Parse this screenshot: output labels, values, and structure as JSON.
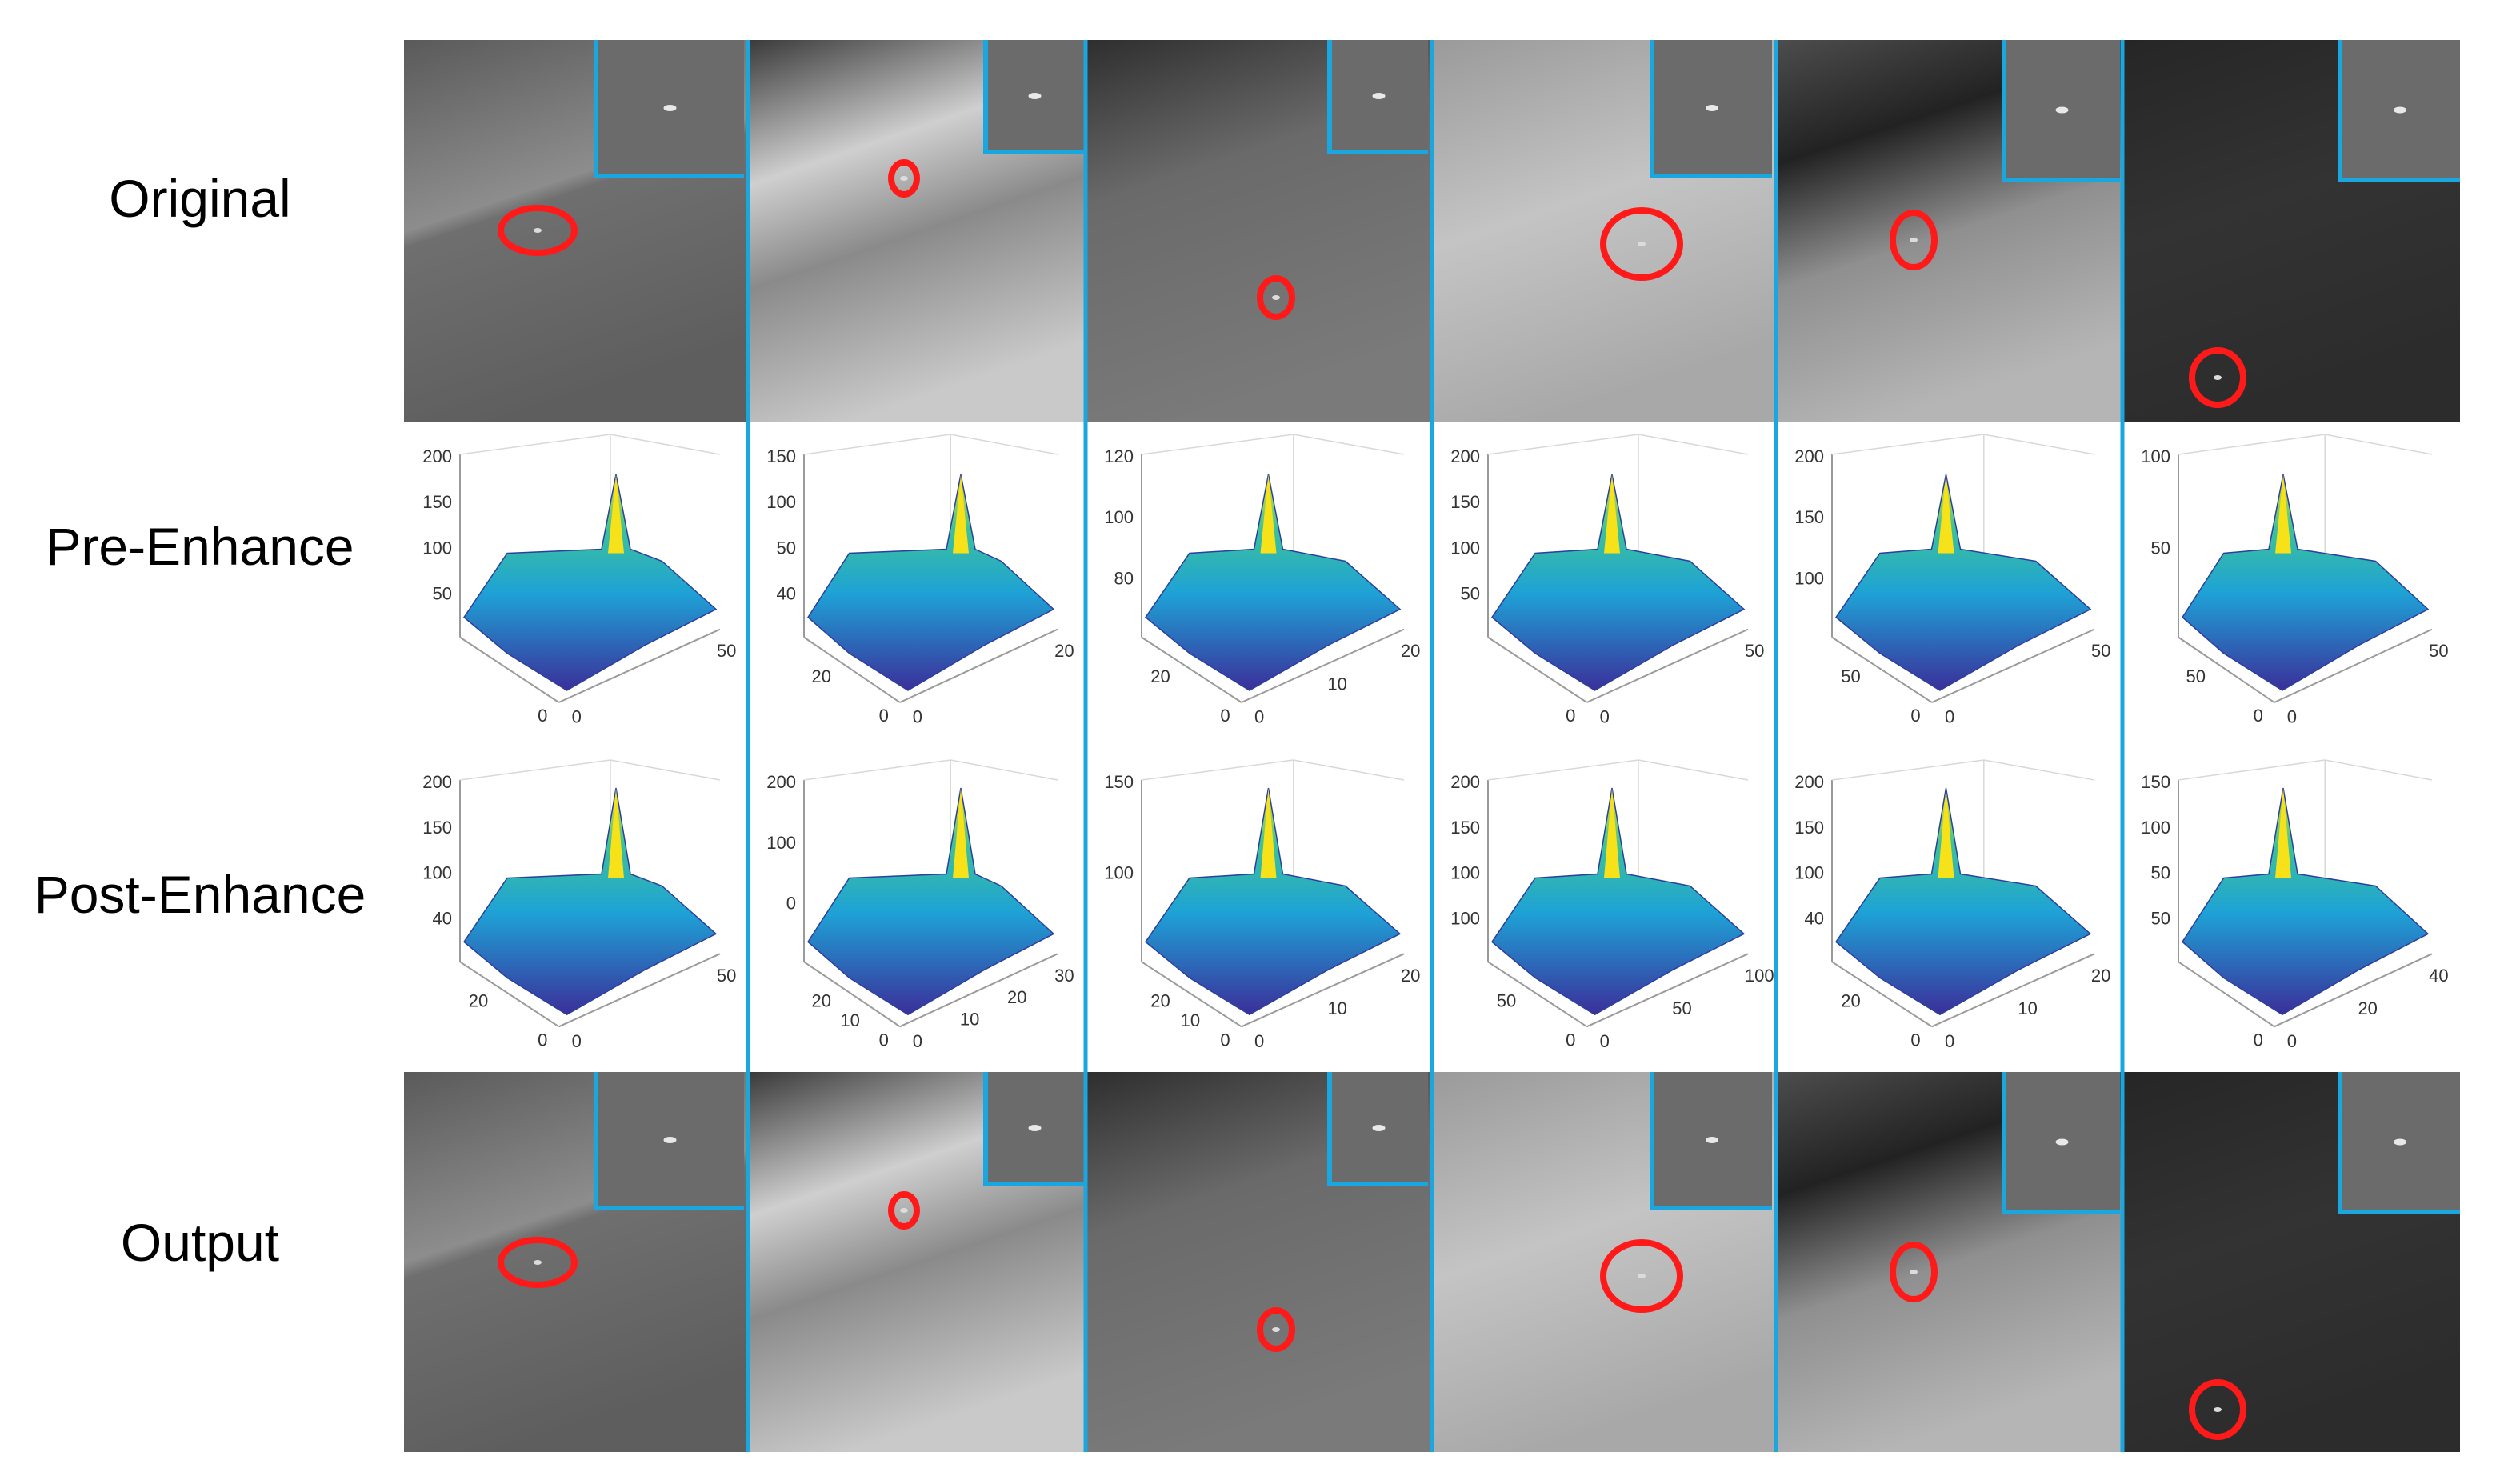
{
  "figure": {
    "row_labels": [
      "Original",
      "Pre-Enhance",
      "Post-Enhance",
      "Output"
    ],
    "colors": {
      "separator": "#1aa7e0",
      "inset_border": "#1aa7e0",
      "target_marker": "#ff1a1a",
      "surface_low": "#3b2f9a",
      "surface_mid": "#1ea2d6",
      "surface_high": "#f7e21a"
    },
    "columns": [
      {
        "scene": "sea-horizon-ships",
        "pre": {
          "z_ticks": [
            "200",
            "150",
            "100",
            "50"
          ],
          "x_ticks": [
            "0",
            "50"
          ],
          "y_ticks": [
            "0"
          ]
        },
        "post": {
          "z_ticks": [
            "200",
            "150",
            "100",
            "40"
          ],
          "x_ticks": [
            "0",
            "50"
          ],
          "y_ticks": [
            "20",
            "0"
          ]
        }
      },
      {
        "scene": "bright-clouds",
        "pre": {
          "z_ticks": [
            "150",
            "100",
            "50",
            "40"
          ],
          "x_ticks": [
            "0",
            "20"
          ],
          "y_ticks": [
            "20",
            "0"
          ]
        },
        "post": {
          "z_ticks": [
            "200",
            "100",
            "0"
          ],
          "x_ticks": [
            "0",
            "10",
            "20",
            "30"
          ],
          "y_ticks": [
            "20",
            "10",
            "0"
          ]
        }
      },
      {
        "scene": "dark-clouds",
        "pre": {
          "z_ticks": [
            "120",
            "100",
            "80"
          ],
          "x_ticks": [
            "0",
            "10",
            "20"
          ],
          "y_ticks": [
            "20",
            "0"
          ]
        },
        "post": {
          "z_ticks": [
            "150",
            "100"
          ],
          "x_ticks": [
            "0",
            "10",
            "20"
          ],
          "y_ticks": [
            "20",
            "10",
            "0"
          ]
        }
      },
      {
        "scene": "haze",
        "pre": {
          "z_ticks": [
            "200",
            "150",
            "100",
            "50"
          ],
          "x_ticks": [
            "0",
            "50"
          ],
          "y_ticks": [
            "0"
          ]
        },
        "post": {
          "z_ticks": [
            "200",
            "150",
            "100",
            "100"
          ],
          "x_ticks": [
            "0",
            "50",
            "100"
          ],
          "y_ticks": [
            "50",
            "0"
          ]
        }
      },
      {
        "scene": "cloud-band",
        "pre": {
          "z_ticks": [
            "200",
            "150",
            "100"
          ],
          "x_ticks": [
            "0",
            "50"
          ],
          "y_ticks": [
            "50",
            "0"
          ]
        },
        "post": {
          "z_ticks": [
            "200",
            "150",
            "100",
            "40"
          ],
          "x_ticks": [
            "0",
            "10",
            "20"
          ],
          "y_ticks": [
            "20",
            "0"
          ]
        }
      },
      {
        "scene": "dark-sky",
        "pre": {
          "z_ticks": [
            "100",
            "50"
          ],
          "x_ticks": [
            "0",
            "50"
          ],
          "y_ticks": [
            "50",
            "0"
          ]
        },
        "post": {
          "z_ticks": [
            "150",
            "100",
            "50",
            "50"
          ],
          "x_ticks": [
            "0",
            "20",
            "40"
          ],
          "y_ticks": [
            "0"
          ]
        }
      }
    ]
  }
}
